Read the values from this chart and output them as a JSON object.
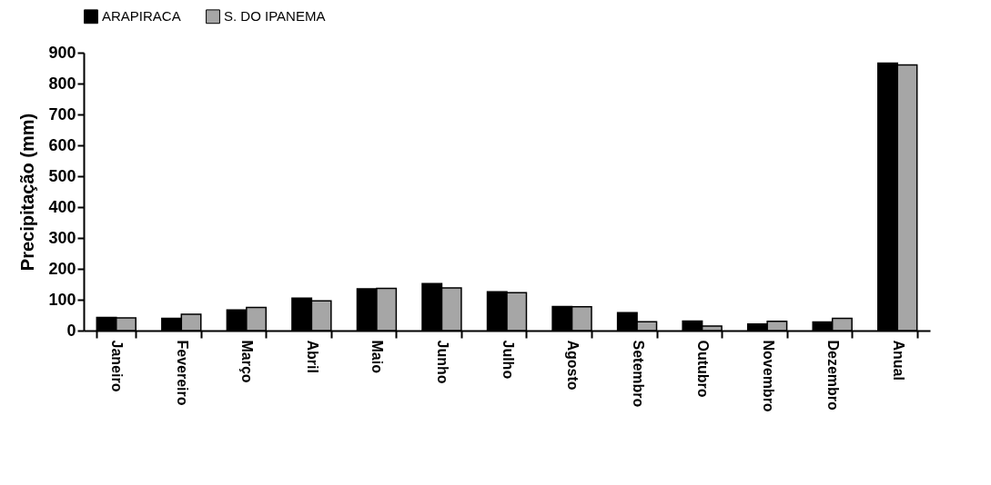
{
  "chart_data": {
    "type": "bar",
    "ylabel": "Precipitação (mm)",
    "categories": [
      "Janeiro",
      "Fevereiro",
      "Março",
      "Abril",
      "Maio",
      "Junho",
      "Julho",
      "Agosto",
      "Setembro",
      "Outubro",
      "Novembro",
      "Dezembro",
      "Anual"
    ],
    "series": [
      {
        "name": "ARAPIRACA",
        "color": "#000000",
        "values": [
          43,
          40,
          67,
          105,
          135,
          152,
          126,
          78,
          58,
          31,
          21,
          28,
          866
        ]
      },
      {
        "name": "S. DO IPANEMA",
        "color": "#a6a6a6",
        "values": [
          41,
          53,
          75,
          96,
          137,
          138,
          123,
          77,
          29,
          15,
          30,
          40,
          860
        ]
      }
    ],
    "ylim": [
      0,
      900
    ],
    "yticks": [
      0,
      100,
      200,
      300,
      400,
      500,
      600,
      700,
      800,
      900
    ],
    "grid": false,
    "legend": "top"
  }
}
